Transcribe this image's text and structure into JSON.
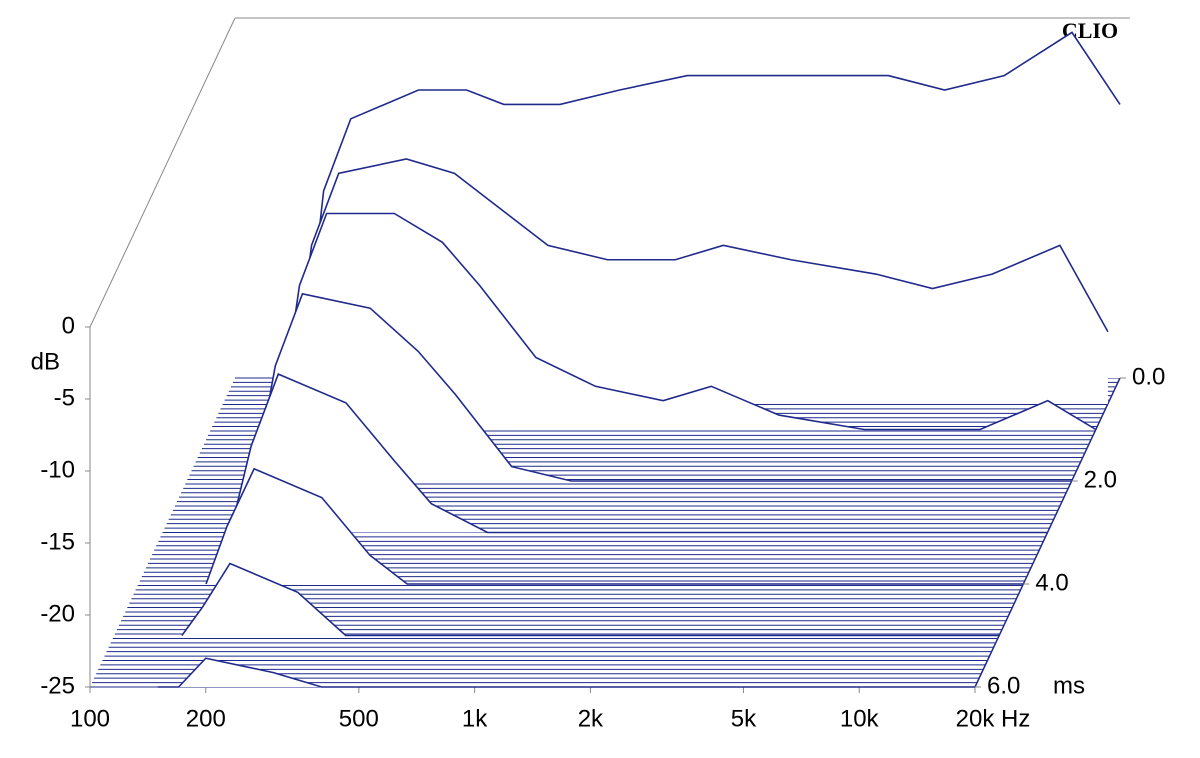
{
  "chart_data": {
    "type": "waterfall",
    "brand": "CLIO",
    "x_unit": "Hz",
    "y_unit": "dB",
    "z_unit": "ms",
    "xscale": "log",
    "xlim": [
      100,
      20000
    ],
    "xticks": [
      100,
      200,
      500,
      {
        "value": 1000,
        "label": "1k"
      },
      {
        "value": 2000,
        "label": "2k"
      },
      {
        "value": 5000,
        "label": "5k"
      },
      {
        "value": 10000,
        "label": "10k"
      },
      {
        "value": 20000,
        "label": "20k"
      }
    ],
    "ylim": [
      -25,
      0
    ],
    "yticks": [
      0,
      -5,
      -10,
      -15,
      -20,
      -25
    ],
    "zlim": [
      0,
      6
    ],
    "zticks": [
      {
        "value": 0,
        "label": "0.0"
      },
      {
        "value": 2,
        "label": "2.0"
      },
      {
        "value": 4,
        "label": "4.0"
      },
      {
        "value": 6,
        "label": "6.0"
      }
    ],
    "color": "#1f2a8c",
    "x": [
      150,
      170,
      200,
      300,
      400,
      500,
      700,
      1000,
      1500,
      2000,
      3000,
      5000,
      7000,
      10000,
      15000,
      20000
    ],
    "series": [
      {
        "time": 0,
        "values": [
          -25,
          -12,
          -7,
          -5,
          -5,
          -6,
          -6,
          -5,
          -4,
          -4,
          -4,
          -4,
          -5,
          -4,
          -1,
          -6
        ]
      },
      {
        "time": 0.5,
        "values": [
          -25,
          -14,
          -9,
          -8,
          -9,
          -11,
          -14,
          -15,
          -15,
          -14,
          -15,
          -16,
          -17,
          -16,
          -14,
          -20
        ]
      },
      {
        "time": 1,
        "values": [
          -25,
          -15,
          -10,
          -10,
          -12,
          -15,
          -20,
          -22,
          -23,
          -22,
          -24,
          -25,
          -25,
          -25,
          -23,
          -25
        ]
      },
      {
        "time": 2,
        "values": [
          -25,
          -17,
          -12,
          -13,
          -16,
          -19,
          -24,
          -25,
          -25,
          -25,
          -25,
          -25,
          -25,
          -25,
          -25,
          -25
        ]
      },
      {
        "time": 3,
        "values": [
          -25,
          -19,
          -14,
          -16,
          -20,
          -23,
          -25,
          -25,
          -25,
          -25,
          -25,
          -25,
          -25,
          -25,
          -25,
          -25
        ]
      },
      {
        "time": 4,
        "values": [
          -25,
          -21,
          -17,
          -19,
          -23,
          -25,
          -25,
          -25,
          -25,
          -25,
          -25,
          -25,
          -25,
          -25,
          -25,
          -25
        ]
      },
      {
        "time": 5,
        "values": [
          -25,
          -23,
          -20,
          -22,
          -25,
          -25,
          -25,
          -25,
          -25,
          -25,
          -25,
          -25,
          -25,
          -25,
          -25,
          -25
        ]
      },
      {
        "time": 6,
        "values": [
          -25,
          -25,
          -23,
          -24,
          -25,
          -25,
          -25,
          -25,
          -25,
          -25,
          -25,
          -25,
          -25,
          -25,
          -25,
          -25
        ]
      }
    ]
  }
}
